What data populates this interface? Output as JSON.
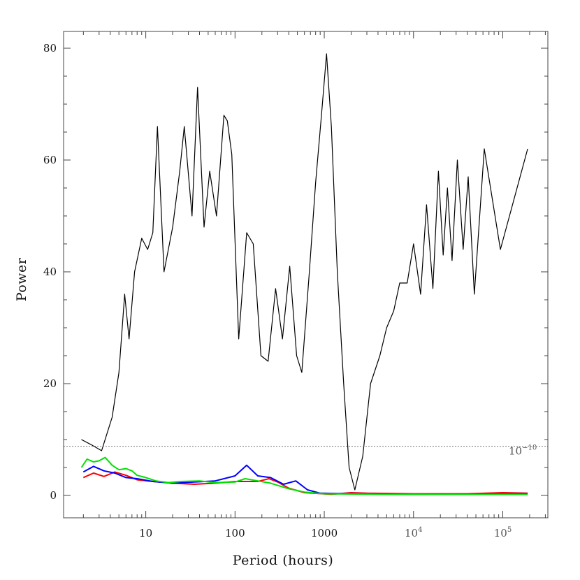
{
  "chart_data": {
    "type": "line",
    "title": "",
    "xlabel": "Period (hours)",
    "ylabel": "Power",
    "x_scale": "log",
    "xlim": [
      1.2,
      320000
    ],
    "ylim": [
      -4,
      83
    ],
    "grid": false,
    "legend": "none",
    "x_ticks": [
      {
        "value": 10,
        "base": "10",
        "exp": ""
      },
      {
        "value": 100,
        "base": "100",
        "exp": ""
      },
      {
        "value": 1000,
        "base": "1000",
        "exp": ""
      },
      {
        "value": 10000,
        "base": "10",
        "exp": "4"
      },
      {
        "value": 100000,
        "base": "10",
        "exp": "5"
      }
    ],
    "y_ticks": [
      0,
      20,
      40,
      60,
      80
    ],
    "threshold": {
      "value": 8.8,
      "label_base": "10",
      "label_exp": "−10",
      "color": "#777777"
    },
    "series": [
      {
        "color": "#000000",
        "points": [
          [
            1.9,
            10
          ],
          [
            2.5,
            9
          ],
          [
            3.2,
            8
          ],
          [
            4.2,
            14
          ],
          [
            5.0,
            22
          ],
          [
            5.8,
            36
          ],
          [
            6.5,
            28
          ],
          [
            7.5,
            40
          ],
          [
            9.0,
            46
          ],
          [
            10.5,
            44
          ],
          [
            12.0,
            47
          ],
          [
            13.5,
            66
          ],
          [
            16,
            40
          ],
          [
            20,
            48
          ],
          [
            24,
            58
          ],
          [
            27,
            66
          ],
          [
            33,
            50
          ],
          [
            38,
            73
          ],
          [
            45,
            48
          ],
          [
            52,
            58
          ],
          [
            62,
            50
          ],
          [
            75,
            68
          ],
          [
            82,
            67
          ],
          [
            92,
            61
          ],
          [
            110,
            28
          ],
          [
            135,
            47
          ],
          [
            160,
            45
          ],
          [
            195,
            25
          ],
          [
            235,
            24
          ],
          [
            285,
            37
          ],
          [
            340,
            28
          ],
          [
            410,
            41
          ],
          [
            490,
            25
          ],
          [
            560,
            22
          ],
          [
            680,
            40
          ],
          [
            800,
            56
          ],
          [
            930,
            68
          ],
          [
            1060,
            79
          ],
          [
            1200,
            66
          ],
          [
            1400,
            40
          ],
          [
            1650,
            20
          ],
          [
            1900,
            5
          ],
          [
            2200,
            1
          ],
          [
            2700,
            7
          ],
          [
            3300,
            20
          ],
          [
            4200,
            25
          ],
          [
            5000,
            30
          ],
          [
            6000,
            33
          ],
          [
            7000,
            38
          ],
          [
            8500,
            38
          ],
          [
            10000,
            45
          ],
          [
            12000,
            36
          ],
          [
            14000,
            52
          ],
          [
            16500,
            37
          ],
          [
            19000,
            58
          ],
          [
            21500,
            43
          ],
          [
            24000,
            55
          ],
          [
            27000,
            42
          ],
          [
            31000,
            60
          ],
          [
            36000,
            44
          ],
          [
            41000,
            57
          ],
          [
            48000,
            36
          ],
          [
            62000,
            62
          ],
          [
            94000,
            44
          ],
          [
            190000,
            62
          ]
        ]
      },
      {
        "color": "#ff0000",
        "points": [
          [
            2.0,
            3.2
          ],
          [
            2.6,
            4
          ],
          [
            3.4,
            3.4
          ],
          [
            4.5,
            4.2
          ],
          [
            6,
            3.6
          ],
          [
            8,
            2.8
          ],
          [
            12,
            2.5
          ],
          [
            20,
            2.2
          ],
          [
            35,
            2
          ],
          [
            60,
            2.2
          ],
          [
            100,
            2.5
          ],
          [
            180,
            2.5
          ],
          [
            240,
            3.0
          ],
          [
            300,
            2.4
          ],
          [
            400,
            1.3
          ],
          [
            600,
            0.5
          ],
          [
            1200,
            0.2
          ],
          [
            2000,
            0.5
          ],
          [
            3000,
            0.4
          ],
          [
            10000,
            0.3
          ],
          [
            40000,
            0.3
          ],
          [
            100000,
            0.5
          ],
          [
            190000,
            0.4
          ]
        ]
      },
      {
        "color": "#0000ff",
        "points": [
          [
            2.0,
            4.2
          ],
          [
            2.6,
            5.2
          ],
          [
            3.4,
            4.4
          ],
          [
            4.5,
            4
          ],
          [
            6,
            3.2
          ],
          [
            8,
            3
          ],
          [
            12,
            2.5
          ],
          [
            20,
            2.2
          ],
          [
            35,
            2.4
          ],
          [
            60,
            2.6
          ],
          [
            100,
            3.5
          ],
          [
            135,
            5.4
          ],
          [
            180,
            3.5
          ],
          [
            250,
            3.2
          ],
          [
            350,
            2.0
          ],
          [
            480,
            2.6
          ],
          [
            650,
            1.0
          ],
          [
            900,
            0.4
          ],
          [
            2000,
            0.3
          ],
          [
            10000,
            0.2
          ],
          [
            190000,
            0.3
          ]
        ]
      },
      {
        "color": "#00e000",
        "points": [
          [
            1.9,
            5
          ],
          [
            2.2,
            6.5
          ],
          [
            2.6,
            6
          ],
          [
            3.0,
            6.2
          ],
          [
            3.5,
            6.8
          ],
          [
            4.2,
            5.4
          ],
          [
            5,
            4.6
          ],
          [
            6,
            4.8
          ],
          [
            7,
            4.4
          ],
          [
            8,
            3.6
          ],
          [
            10,
            3.2
          ],
          [
            13,
            2.6
          ],
          [
            18,
            2.3
          ],
          [
            25,
            2.5
          ],
          [
            40,
            2.6
          ],
          [
            60,
            2.3
          ],
          [
            100,
            2.4
          ],
          [
            130,
            3
          ],
          [
            180,
            2.6
          ],
          [
            250,
            2.2
          ],
          [
            400,
            1.2
          ],
          [
            600,
            0.6
          ],
          [
            1000,
            0.3
          ],
          [
            5000,
            0.2
          ],
          [
            40000,
            0.2
          ],
          [
            190000,
            0.2
          ]
        ]
      }
    ]
  }
}
